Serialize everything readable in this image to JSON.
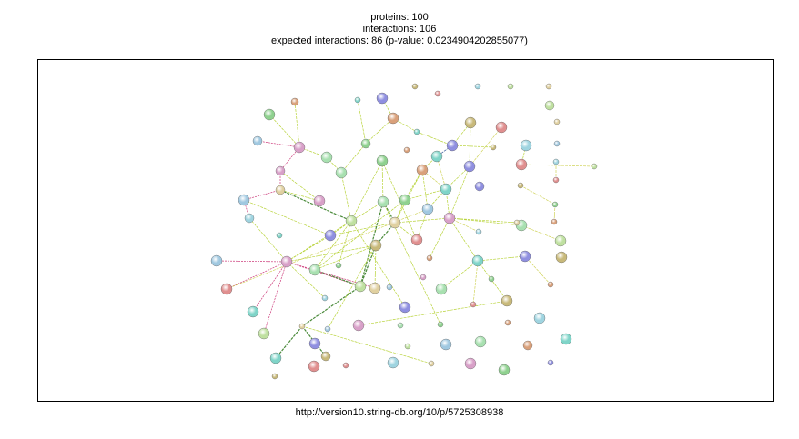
{
  "header": {
    "proteins": "proteins: 100",
    "interactions": "interactions: 106",
    "expected": "expected interactions: 86 (p-value: 0.0234904202855077)"
  },
  "footer": {
    "url": "http://version10.string-db.org/10/p/5725308938"
  },
  "colors": {
    "node_palette": [
      "#8fd18f",
      "#d9a07a",
      "#7fd4c8",
      "#8f8fe0",
      "#c8b97a",
      "#e08f8f",
      "#9fd4e0",
      "#bfe0a0",
      "#e0d0a0",
      "#a0c8e0",
      "#d8a0c8",
      "#a8e0b0"
    ],
    "edge_palette": [
      "#b8d33a",
      "#d0d35a",
      "#cc3a7a",
      "#3a5a9a",
      "#4a8a3a",
      "#d0a060"
    ]
  }
}
